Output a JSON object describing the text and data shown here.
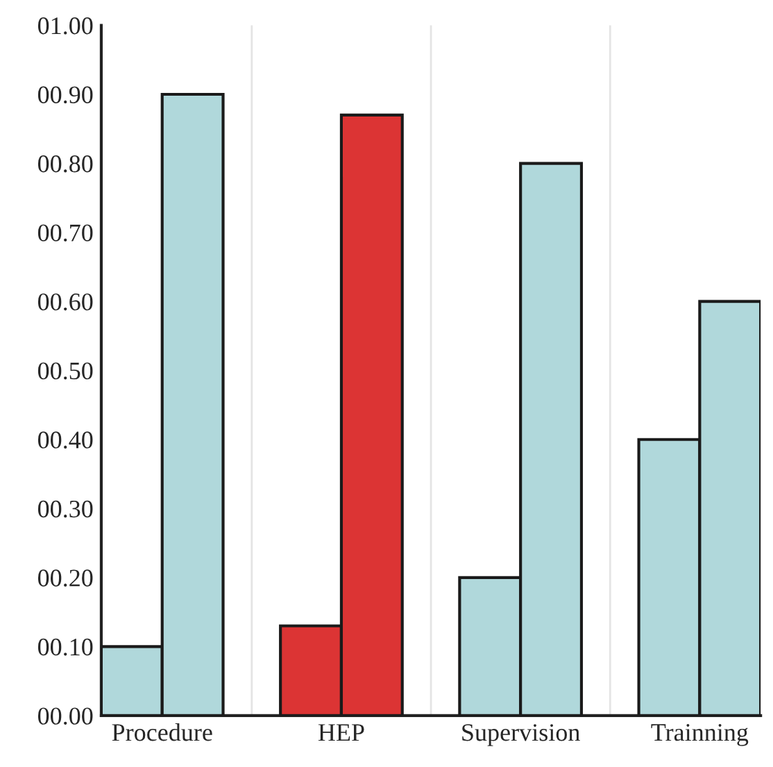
{
  "chart_data": {
    "type": "bar",
    "categories": [
      "Procedure",
      "HEP",
      "Supervision",
      "Trainning"
    ],
    "series": [
      {
        "colors": [
          "#b0d8db",
          "#dc3434",
          "#b0d8db",
          "#b0d8db"
        ],
        "values": [
          0.1,
          0.13,
          0.2,
          0.4
        ]
      },
      {
        "colors": [
          "#b0d8db",
          "#dc3434",
          "#b0d8db",
          "#b0d8db"
        ],
        "values": [
          0.9,
          0.87,
          0.8,
          0.6
        ]
      }
    ],
    "ylim": [
      0,
      1
    ],
    "yticks": [
      {
        "value": 0,
        "label": "00.00"
      },
      {
        "value": 0.1,
        "label": "00.10"
      },
      {
        "value": 0.2,
        "label": "00.20"
      },
      {
        "value": 0.3,
        "label": "00.30"
      },
      {
        "value": 0.4,
        "label": "00.40"
      },
      {
        "value": 0.5,
        "label": "00.50"
      },
      {
        "value": 0.6,
        "label": "00.60"
      },
      {
        "value": 0.7,
        "label": "00.70"
      },
      {
        "value": 0.8,
        "label": "00.80"
      },
      {
        "value": 0.9,
        "label": "00.90"
      },
      {
        "value": 1,
        "label": "01.00"
      }
    ],
    "grid": "x"
  }
}
